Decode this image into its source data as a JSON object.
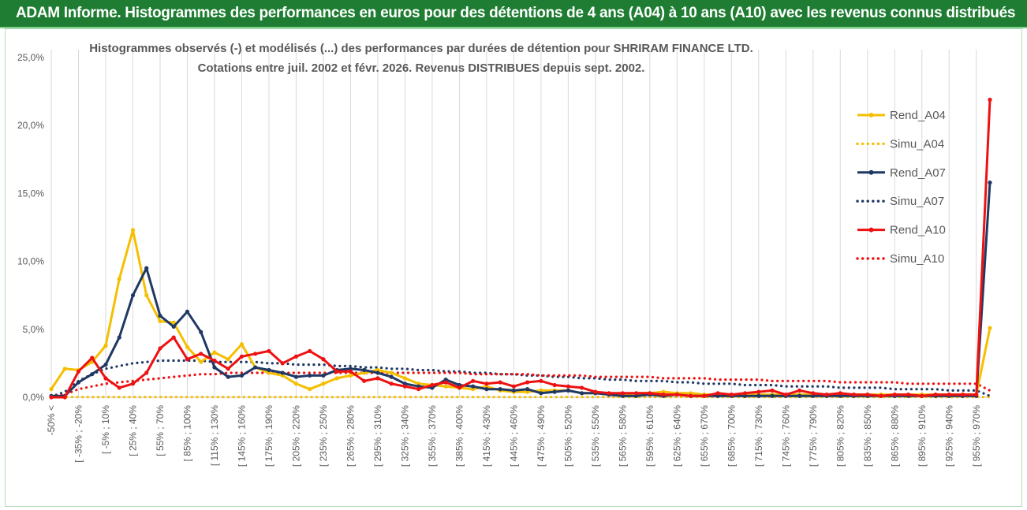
{
  "header": {
    "title": "ADAM Informe. Histogrammes des performances en euros pour des détentions de 4 ans (A04) à 10 ans (A10) avec les revenus connus distribués"
  },
  "chart_data": {
    "type": "line",
    "title_lines": [
      "Histogrammes observés (-) et modélisés (...) des performances par durées de détention pour SHRIRAM FINANCE LTD.",
      "Cotations entre juil. 2002 et févr. 2026.  Revenus DISTRIBUES depuis sept. 2002."
    ],
    "xlabel": "",
    "ylabel": "",
    "ylim": [
      0,
      25
    ],
    "yticks": [
      0,
      5,
      10,
      15,
      20,
      25
    ],
    "yticklabels": [
      "0,0%",
      "5,0%",
      "10,0%",
      "15,0%",
      "20,0%",
      "25,0%"
    ],
    "xticklabels": [
      "-50% <",
      "[ -35% ; -20%",
      "[ -5% ; 10%",
      "[ 25% ; 40%",
      "[ 55% ; 70%",
      "[ 85% ; 100%",
      "[ 115% ; 130%",
      "[ 145% ; 160%",
      "[ 175% ; 190%",
      "[ 205% ; 220%",
      "[ 235% ; 250%",
      "[ 265% ; 280%",
      "[ 295% ; 310%",
      "[ 325% ; 340%",
      "[ 355% ; 370%",
      "[ 385% ; 400%",
      "[ 415% ; 430%",
      "[ 445% ; 460%",
      "[ 475% ; 490%",
      "[ 505% ; 520%",
      "[ 535% ; 550%",
      "[ 565% ; 580%",
      "[ 595% ; 610%",
      "[ 625% ; 640%",
      "[ 655% ; 670%",
      "[ 685% ; 700%",
      "[ 715% ; 730%",
      "[ 745% ; 760%",
      "[ 775% ; 790%",
      "[ 805% ; 820%",
      "[ 835% ; 850%",
      "[ 865% ; 880%",
      "[ 895% ; 910%",
      "[ 925% ; 940%",
      "[ 955% ; 970%"
    ],
    "n_points": 70,
    "legend_position": "right",
    "series": [
      {
        "name": "Rend_A04",
        "color": "#f5bf00",
        "style": "solid",
        "marker": true,
        "values": [
          0.6,
          2.1,
          2.0,
          2.6,
          3.8,
          8.7,
          12.3,
          7.5,
          5.6,
          5.5,
          3.7,
          2.6,
          3.3,
          2.8,
          3.9,
          2.2,
          1.8,
          1.6,
          1.0,
          0.6,
          1.0,
          1.4,
          1.6,
          1.8,
          2.0,
          1.8,
          1.4,
          1.0,
          0.9,
          0.8,
          0.7,
          0.6,
          0.8,
          0.5,
          0.4,
          0.4,
          0.5,
          0.5,
          0.5,
          0.3,
          0.3,
          0.3,
          0.2,
          0.3,
          0.3,
          0.4,
          0.3,
          0.3,
          0.2,
          0.2,
          0.2,
          0.2,
          0.2,
          0.2,
          0.2,
          0.2,
          0.2,
          0.2,
          0.2,
          0.2,
          0.2,
          0.2,
          0.2,
          0.2,
          0.2,
          0.2,
          0.2,
          0.2,
          0.2,
          5.1
        ]
      },
      {
        "name": "Simu_A04",
        "color": "#f5bf00",
        "style": "dotted",
        "marker": false,
        "values": [
          0.02,
          0.02,
          0.02,
          0.02,
          0.02,
          0.02,
          0.02,
          0.02,
          0.02,
          0.02,
          0.02,
          0.02,
          0.02,
          0.02,
          0.02,
          0.02,
          0.02,
          0.02,
          0.02,
          0.02,
          0.02,
          0.02,
          0.02,
          0.02,
          0.02,
          0.02,
          0.02,
          0.02,
          0.02,
          0.02,
          0.02,
          0.02,
          0.02,
          0.02,
          0.02,
          0.02,
          0.02,
          0.02,
          0.02,
          0.02,
          0.02,
          0.02,
          0.02,
          0.02,
          0.02,
          0.02,
          0.02,
          0.02,
          0.02,
          0.02,
          0.02,
          0.02,
          0.02,
          0.02,
          0.02,
          0.02,
          0.02,
          0.02,
          0.02,
          0.02,
          0.02,
          0.02,
          0.02,
          0.02,
          0.02,
          0.02,
          0.02,
          0.02,
          0.02,
          0.02
        ]
      },
      {
        "name": "Rend_A07",
        "color": "#1f3864",
        "style": "solid",
        "marker": true,
        "values": [
          0.1,
          0.1,
          1.1,
          1.7,
          2.4,
          4.4,
          7.5,
          9.5,
          6.0,
          5.2,
          6.3,
          4.8,
          2.2,
          1.5,
          1.6,
          2.2,
          2.0,
          1.8,
          1.5,
          1.6,
          1.6,
          2.0,
          2.1,
          2.0,
          1.8,
          1.5,
          1.0,
          0.8,
          0.7,
          1.3,
          0.9,
          0.8,
          0.6,
          0.6,
          0.5,
          0.6,
          0.3,
          0.4,
          0.5,
          0.3,
          0.3,
          0.2,
          0.1,
          0.1,
          0.2,
          0.1,
          0.2,
          0.1,
          0.1,
          0.1,
          0.1,
          0.1,
          0.1,
          0.1,
          0.1,
          0.1,
          0.1,
          0.1,
          0.1,
          0.1,
          0.1,
          0.1,
          0.1,
          0.1,
          0.1,
          0.1,
          0.1,
          0.1,
          0.1,
          15.8
        ]
      },
      {
        "name": "Simu_A07",
        "color": "#1f3864",
        "style": "dotted",
        "marker": false,
        "values": [
          0.05,
          0.4,
          1.2,
          1.7,
          2.1,
          2.3,
          2.5,
          2.6,
          2.7,
          2.7,
          2.7,
          2.7,
          2.6,
          2.6,
          2.6,
          2.6,
          2.5,
          2.5,
          2.4,
          2.4,
          2.4,
          2.3,
          2.3,
          2.2,
          2.2,
          2.1,
          2.1,
          2.0,
          2.0,
          1.9,
          1.9,
          1.8,
          1.8,
          1.7,
          1.7,
          1.6,
          1.6,
          1.5,
          1.5,
          1.4,
          1.4,
          1.3,
          1.3,
          1.2,
          1.2,
          1.2,
          1.1,
          1.1,
          1.0,
          1.0,
          1.0,
          0.9,
          0.9,
          0.9,
          0.8,
          0.8,
          0.8,
          0.8,
          0.7,
          0.7,
          0.7,
          0.7,
          0.6,
          0.6,
          0.6,
          0.6,
          0.5,
          0.5,
          0.5,
          0.1
        ]
      },
      {
        "name": "Rend_A10",
        "color": "#ee1111",
        "style": "solid",
        "marker": true,
        "values": [
          0.0,
          0.0,
          1.9,
          2.9,
          1.4,
          0.7,
          1.0,
          1.8,
          3.6,
          4.4,
          2.8,
          3.2,
          2.7,
          2.1,
          3.0,
          3.2,
          3.4,
          2.5,
          3.0,
          3.4,
          2.8,
          1.9,
          1.9,
          1.2,
          1.4,
          1.0,
          0.8,
          0.6,
          0.9,
          1.1,
          0.7,
          1.2,
          1.0,
          1.1,
          0.8,
          1.1,
          1.2,
          0.9,
          0.8,
          0.7,
          0.4,
          0.3,
          0.3,
          0.3,
          0.3,
          0.2,
          0.2,
          0.1,
          0.1,
          0.3,
          0.2,
          0.3,
          0.4,
          0.5,
          0.2,
          0.5,
          0.3,
          0.2,
          0.3,
          0.2,
          0.2,
          0.1,
          0.2,
          0.2,
          0.1,
          0.2,
          0.2,
          0.2,
          0.2,
          21.9
        ]
      },
      {
        "name": "Simu_A10",
        "color": "#ee1111",
        "style": "dotted",
        "marker": false,
        "values": [
          0.05,
          0.2,
          0.6,
          0.8,
          1.0,
          1.1,
          1.2,
          1.3,
          1.4,
          1.5,
          1.6,
          1.7,
          1.7,
          1.8,
          1.8,
          1.8,
          1.8,
          1.8,
          1.8,
          1.8,
          1.8,
          1.8,
          1.8,
          1.8,
          1.8,
          1.8,
          1.8,
          1.8,
          1.8,
          1.8,
          1.8,
          1.7,
          1.7,
          1.7,
          1.7,
          1.7,
          1.6,
          1.6,
          1.6,
          1.6,
          1.5,
          1.5,
          1.5,
          1.5,
          1.5,
          1.4,
          1.4,
          1.4,
          1.4,
          1.3,
          1.3,
          1.3,
          1.3,
          1.2,
          1.2,
          1.2,
          1.2,
          1.2,
          1.1,
          1.1,
          1.1,
          1.1,
          1.1,
          1.0,
          1.0,
          1.0,
          1.0,
          1.0,
          1.0,
          0.5
        ]
      }
    ]
  }
}
